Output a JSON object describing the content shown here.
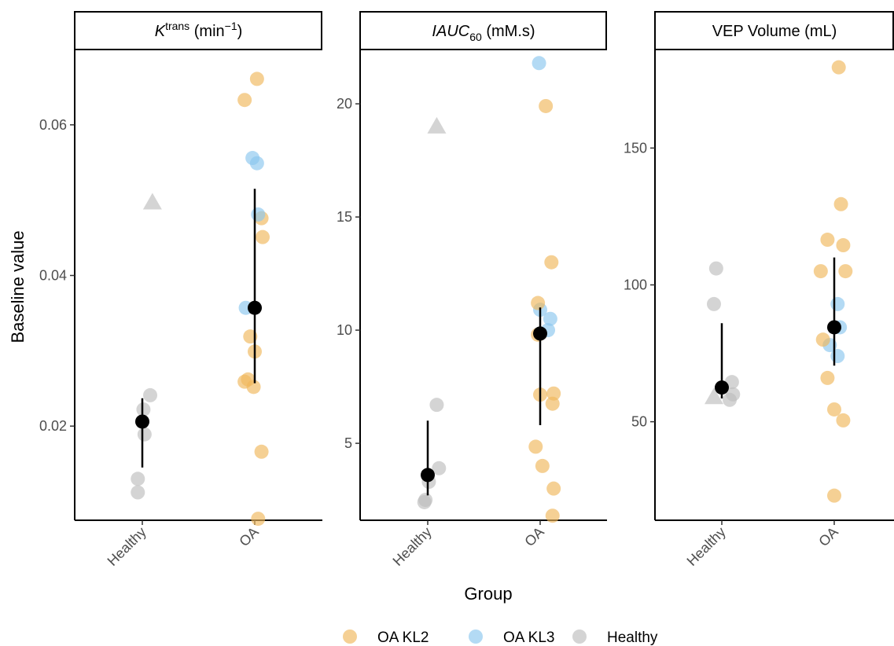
{
  "chart_data": {
    "type": "scatter",
    "xlabel": "Group",
    "ylabel": "Baseline value",
    "categories": [
      "Healthy",
      "OA"
    ],
    "legend": {
      "position": "bottom",
      "items": [
        {
          "label": "OA KL2",
          "color": "#EFB75A"
        },
        {
          "label": "OA KL3",
          "color": "#8BC6EE"
        },
        {
          "label": "Healthy",
          "color": "#BDBDBD"
        }
      ]
    },
    "panels": [
      {
        "title_prefix": "K",
        "title_sup": "trans",
        "title_main": " (min",
        "title_sup2": "−1",
        "title_suffix": ")",
        "ylim": [
          0.0075,
          0.07
        ],
        "yticks": [
          0.02,
          0.04,
          0.06
        ],
        "ytick_labels": [
          "0.02",
          "0.04",
          "0.06"
        ],
        "points": [
          {
            "group": "Healthy",
            "jitter": -0.04,
            "y": 0.0112,
            "type": "Healthy"
          },
          {
            "group": "Healthy",
            "jitter": -0.04,
            "y": 0.013,
            "type": "Healthy"
          },
          {
            "group": "Healthy",
            "jitter": 0.02,
            "y": 0.0189,
            "type": "Healthy"
          },
          {
            "group": "Healthy",
            "jitter": 0.01,
            "y": 0.0222,
            "type": "Healthy"
          },
          {
            "group": "Healthy",
            "jitter": 0.07,
            "y": 0.0241,
            "type": "Healthy"
          },
          {
            "group": "Healthy",
            "jitter": 0.09,
            "y": 0.0497,
            "type": "Healthy",
            "shape": "triangle"
          },
          {
            "group": "OA",
            "jitter": 0.03,
            "y": 0.0077,
            "type": "OA KL2"
          },
          {
            "group": "OA",
            "jitter": 0.06,
            "y": 0.0166,
            "type": "OA KL2"
          },
          {
            "group": "OA",
            "jitter": -0.01,
            "y": 0.0252,
            "type": "OA KL2"
          },
          {
            "group": "OA",
            "jitter": -0.09,
            "y": 0.0259,
            "type": "OA KL2"
          },
          {
            "group": "OA",
            "jitter": -0.06,
            "y": 0.0262,
            "type": "OA KL2"
          },
          {
            "group": "OA",
            "jitter": 0.0,
            "y": 0.0299,
            "type": "OA KL2"
          },
          {
            "group": "OA",
            "jitter": -0.04,
            "y": 0.0319,
            "type": "OA KL2"
          },
          {
            "group": "OA",
            "jitter": -0.08,
            "y": 0.0357,
            "type": "OA KL3"
          },
          {
            "group": "OA",
            "jitter": 0.07,
            "y": 0.0451,
            "type": "OA KL2"
          },
          {
            "group": "OA",
            "jitter": 0.06,
            "y": 0.0476,
            "type": "OA KL2"
          },
          {
            "group": "OA",
            "jitter": 0.03,
            "y": 0.0481,
            "type": "OA KL3"
          },
          {
            "group": "OA",
            "jitter": 0.02,
            "y": 0.0549,
            "type": "OA KL3"
          },
          {
            "group": "OA",
            "jitter": -0.02,
            "y": 0.0556,
            "type": "OA KL3"
          },
          {
            "group": "OA",
            "jitter": -0.09,
            "y": 0.0633,
            "type": "OA KL2"
          },
          {
            "group": "OA",
            "jitter": 0.02,
            "y": 0.0661,
            "type": "OA KL2"
          }
        ],
        "summary": [
          {
            "group": "Healthy",
            "median": 0.0206,
            "low": 0.0145,
            "high": 0.0237
          },
          {
            "group": "OA",
            "median": 0.0357,
            "low": 0.0257,
            "high": 0.0515
          }
        ]
      },
      {
        "title_prefix": "IAUC",
        "title_sub": "60",
        "title_main": " (mM.s)",
        "ylim": [
          1.6,
          22.4
        ],
        "yticks": [
          5,
          10,
          15,
          20
        ],
        "ytick_labels": [
          "5",
          "10",
          "15",
          "20"
        ],
        "points": [
          {
            "group": "Healthy",
            "jitter": -0.03,
            "y": 2.4,
            "type": "Healthy"
          },
          {
            "group": "Healthy",
            "jitter": -0.02,
            "y": 2.5,
            "type": "Healthy"
          },
          {
            "group": "Healthy",
            "jitter": 0.01,
            "y": 3.3,
            "type": "Healthy"
          },
          {
            "group": "Healthy",
            "jitter": 0.1,
            "y": 3.9,
            "type": "Healthy"
          },
          {
            "group": "Healthy",
            "jitter": 0.08,
            "y": 6.7,
            "type": "Healthy"
          },
          {
            "group": "Healthy",
            "jitter": 0.08,
            "y": 19.0,
            "type": "Healthy",
            "shape": "triangle"
          },
          {
            "group": "OA",
            "jitter": 0.11,
            "y": 1.8,
            "type": "OA KL2"
          },
          {
            "group": "OA",
            "jitter": 0.12,
            "y": 3.0,
            "type": "OA KL2"
          },
          {
            "group": "OA",
            "jitter": 0.02,
            "y": 4.0,
            "type": "OA KL2"
          },
          {
            "group": "OA",
            "jitter": -0.04,
            "y": 4.85,
            "type": "OA KL2"
          },
          {
            "group": "OA",
            "jitter": 0.11,
            "y": 6.75,
            "type": "OA KL2"
          },
          {
            "group": "OA",
            "jitter": 0.0,
            "y": 7.15,
            "type": "OA KL2"
          },
          {
            "group": "OA",
            "jitter": 0.12,
            "y": 7.2,
            "type": "OA KL2"
          },
          {
            "group": "OA",
            "jitter": -0.02,
            "y": 9.8,
            "type": "OA KL2"
          },
          {
            "group": "OA",
            "jitter": 0.07,
            "y": 10.0,
            "type": "OA KL3"
          },
          {
            "group": "OA",
            "jitter": 0.09,
            "y": 10.5,
            "type": "OA KL3"
          },
          {
            "group": "OA",
            "jitter": 0.0,
            "y": 10.9,
            "type": "OA KL3"
          },
          {
            "group": "OA",
            "jitter": -0.02,
            "y": 11.2,
            "type": "OA KL2"
          },
          {
            "group": "OA",
            "jitter": 0.1,
            "y": 13.0,
            "type": "OA KL2"
          },
          {
            "group": "OA",
            "jitter": 0.05,
            "y": 19.9,
            "type": "OA KL2"
          },
          {
            "group": "OA",
            "jitter": -0.01,
            "y": 21.8,
            "type": "OA KL3"
          }
        ],
        "summary": [
          {
            "group": "Healthy",
            "median": 3.6,
            "low": 2.7,
            "high": 6.0
          },
          {
            "group": "OA",
            "median": 9.85,
            "low": 5.8,
            "high": 11.0
          }
        ]
      },
      {
        "title_prefix": "",
        "title_main": "VEP Volume (mL)",
        "ylim": [
          14,
          186
        ],
        "yticks": [
          50,
          100,
          150
        ],
        "ytick_labels": [
          "50",
          "100",
          "150"
        ],
        "points": [
          {
            "group": "Healthy",
            "jitter": -0.07,
            "y": 59,
            "type": "Healthy",
            "shape": "triangle"
          },
          {
            "group": "Healthy",
            "jitter": 0.07,
            "y": 58,
            "type": "Healthy"
          },
          {
            "group": "Healthy",
            "jitter": 0.1,
            "y": 60,
            "type": "Healthy"
          },
          {
            "group": "Healthy",
            "jitter": 0.09,
            "y": 64.5,
            "type": "Healthy"
          },
          {
            "group": "Healthy",
            "jitter": -0.07,
            "y": 93,
            "type": "Healthy"
          },
          {
            "group": "Healthy",
            "jitter": -0.05,
            "y": 106,
            "type": "Healthy"
          },
          {
            "group": "OA",
            "jitter": 0.0,
            "y": 23,
            "type": "OA KL2"
          },
          {
            "group": "OA",
            "jitter": 0.08,
            "y": 50.5,
            "type": "OA KL2"
          },
          {
            "group": "OA",
            "jitter": 0.0,
            "y": 54.5,
            "type": "OA KL2"
          },
          {
            "group": "OA",
            "jitter": -0.06,
            "y": 66,
            "type": "OA KL2"
          },
          {
            "group": "OA",
            "jitter": 0.03,
            "y": 74,
            "type": "OA KL3"
          },
          {
            "group": "OA",
            "jitter": -0.04,
            "y": 78,
            "type": "OA KL3"
          },
          {
            "group": "OA",
            "jitter": -0.1,
            "y": 80,
            "type": "OA KL2"
          },
          {
            "group": "OA",
            "jitter": 0.05,
            "y": 84.5,
            "type": "OA KL3"
          },
          {
            "group": "OA",
            "jitter": 0.03,
            "y": 93,
            "type": "OA KL3"
          },
          {
            "group": "OA",
            "jitter": -0.12,
            "y": 105,
            "type": "OA KL2"
          },
          {
            "group": "OA",
            "jitter": 0.1,
            "y": 105,
            "type": "OA KL2"
          },
          {
            "group": "OA",
            "jitter": 0.08,
            "y": 114.5,
            "type": "OA KL2"
          },
          {
            "group": "OA",
            "jitter": -0.06,
            "y": 116.5,
            "type": "OA KL2"
          },
          {
            "group": "OA",
            "jitter": 0.06,
            "y": 129.5,
            "type": "OA KL2"
          },
          {
            "group": "OA",
            "jitter": 0.04,
            "y": 179.5,
            "type": "OA KL2"
          }
        ],
        "summary": [
          {
            "group": "Healthy",
            "median": 62.5,
            "low": 58.5,
            "high": 86
          },
          {
            "group": "OA",
            "median": 84.5,
            "low": 70.5,
            "high": 110
          }
        ]
      }
    ]
  }
}
